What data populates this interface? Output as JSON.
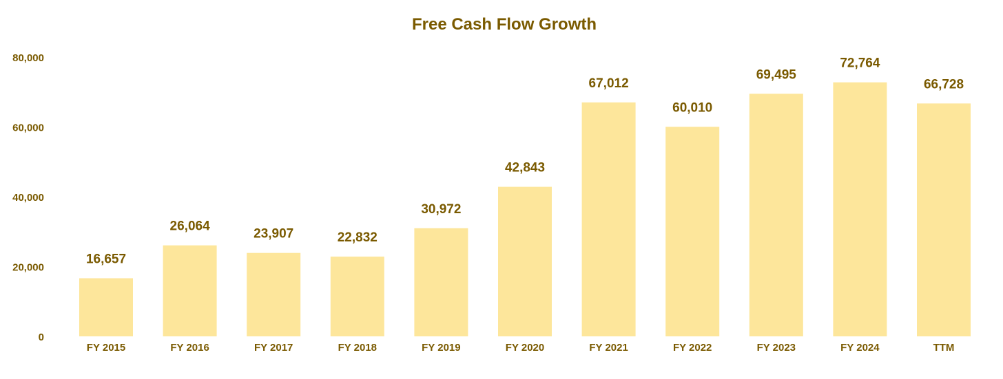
{
  "colors": {
    "bar": "#FDE69B",
    "text": "#7A5A00",
    "background": "#FFFFFF"
  },
  "chart_data": {
    "type": "bar",
    "title": "Free Cash Flow Growth",
    "xlabel": "",
    "ylabel": "",
    "categories": [
      "FY 2015",
      "FY 2016",
      "FY 2017",
      "FY 2018",
      "FY 2019",
      "FY 2020",
      "FY 2021",
      "FY 2022",
      "FY 2023",
      "FY 2024",
      "TTM"
    ],
    "values": [
      16657,
      26064,
      23907,
      22832,
      30972,
      42843,
      67012,
      60010,
      69495,
      72764,
      66728
    ],
    "data_labels": [
      "16,657",
      "26,064",
      "23,907",
      "22,832",
      "30,972",
      "42,843",
      "67,012",
      "60,010",
      "69,495",
      "72,764",
      "66,728"
    ],
    "yticks": [
      0,
      20000,
      40000,
      60000,
      80000
    ],
    "ytick_labels": [
      "0",
      "20,000",
      "40,000",
      "60,000",
      "80,000"
    ],
    "ylim": [
      0,
      80000
    ],
    "grid": false,
    "legend": "none"
  }
}
